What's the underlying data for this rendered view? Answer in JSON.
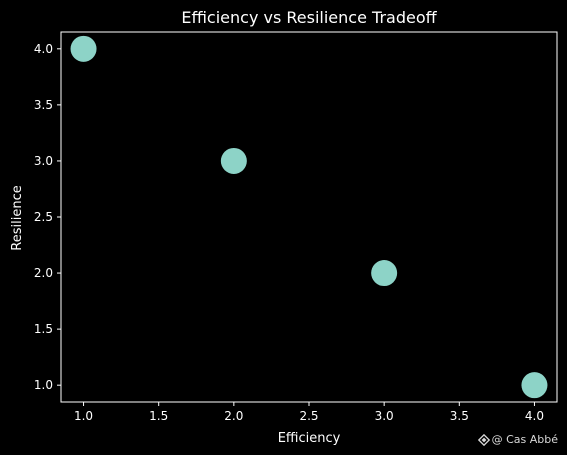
{
  "chart_data": {
    "type": "scatter",
    "title": "Efficiency vs Resilience Tradeoff",
    "xlabel": "Efficiency",
    "ylabel": "Resilience",
    "x": [
      1.0,
      2.0,
      3.0,
      4.0
    ],
    "y": [
      4.0,
      3.0,
      2.0,
      1.0
    ],
    "xlim": [
      0.85,
      4.15
    ],
    "ylim": [
      0.85,
      4.15
    ],
    "xticks": [
      1.0,
      1.5,
      2.0,
      2.5,
      3.0,
      3.5,
      4.0
    ],
    "yticks": [
      1.0,
      1.5,
      2.0,
      2.5,
      3.0,
      3.5,
      4.0
    ],
    "xtick_labels": [
      "1.0",
      "1.5",
      "2.0",
      "2.5",
      "3.0",
      "3.5",
      "4.0"
    ],
    "ytick_labels": [
      "1.0",
      "1.5",
      "2.0",
      "2.5",
      "3.0",
      "3.5",
      "4.0"
    ],
    "grid": false,
    "marker_color": "#8dd3c7",
    "background_color": "#000000",
    "foreground_color": "#ffffff"
  },
  "watermark": {
    "icon": "diamond-logo-icon",
    "text": "@ Cas Abbé"
  }
}
